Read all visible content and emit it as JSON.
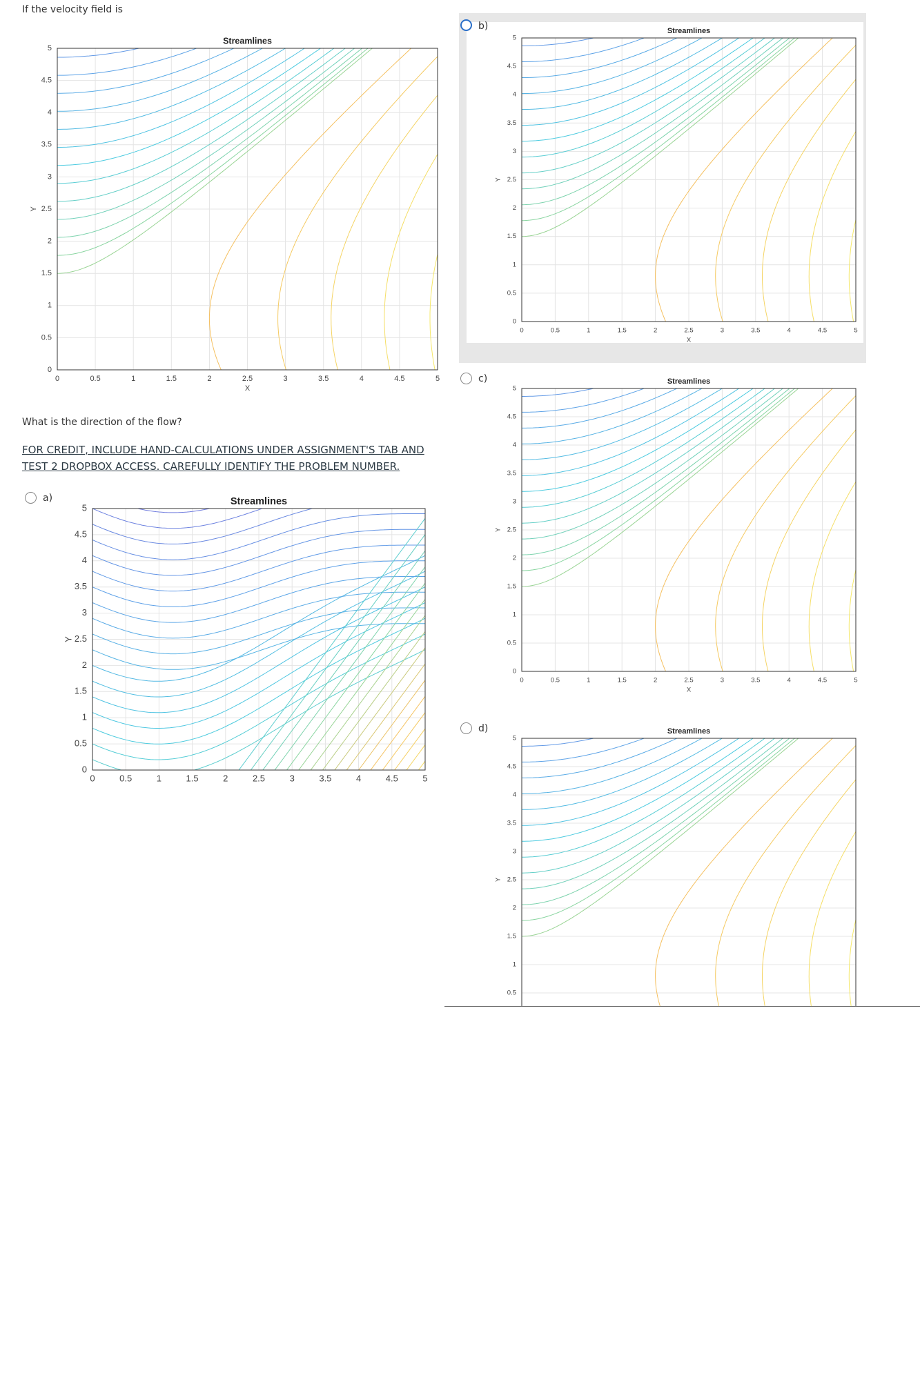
{
  "page": {
    "prompt": "If the velocity field is",
    "question": "What is the direction of the flow?",
    "instruction": [
      "FOR CREDIT, INCLUDE HAND-CALCULATIONS UNDER ASSIGNMENT'S TAB AND",
      "TEST 2 DROPBOX  ACCESS. CAREFULLY IDENTIFY THE PROBLEM NUMBER."
    ]
  },
  "options": [
    {
      "label": "a)"
    },
    {
      "label": "b)"
    },
    {
      "label": "c)"
    },
    {
      "label": "d)"
    }
  ],
  "plots": [
    {
      "title": "Streamlines",
      "xlabel": "X",
      "ylabel": "Y",
      "xlim": [
        0,
        5
      ],
      "ylim": [
        0,
        5
      ],
      "xticks": [
        0,
        0.5,
        1,
        1.5,
        2,
        2.5,
        3,
        3.5,
        4,
        4.5,
        5
      ],
      "yticks": [
        0,
        0.5,
        1,
        1.5,
        2,
        2.5,
        3,
        3.5,
        4,
        4.5,
        5
      ]
    },
    {
      "title": "Streamlines",
      "ylabel": "Y",
      "xlim": [
        0,
        5
      ],
      "ylim": [
        0,
        5
      ],
      "xticks": [
        0,
        0.5,
        1,
        1.5,
        2,
        2.5,
        3,
        3.5,
        4,
        4.5,
        5
      ],
      "yticks": [
        0,
        0.5,
        1,
        1.5,
        2,
        2.5,
        3,
        3.5,
        4,
        4.5,
        5
      ]
    },
    {
      "title": "Streamlines",
      "xlabel": "X",
      "ylabel": "Y",
      "xlim": [
        0,
        5
      ],
      "ylim": [
        0,
        5
      ],
      "xticks": [
        0,
        0.5,
        1,
        1.5,
        2,
        2.5,
        3,
        3.5,
        4,
        4.5,
        5
      ],
      "yticks": [
        0,
        0.5,
        1,
        1.5,
        2,
        2.5,
        3,
        3.5,
        4,
        4.5,
        5
      ]
    },
    {
      "title": "Streamlines",
      "xlabel": "X",
      "ylabel": "Y",
      "xlim": [
        0,
        5
      ],
      "ylim": [
        0,
        5
      ],
      "xticks": [
        0,
        0.5,
        1,
        1.5,
        2,
        2.5,
        3,
        3.5,
        4,
        4.5,
        5
      ],
      "yticks": [
        0,
        0.5,
        1,
        1.5,
        2,
        2.5,
        3,
        3.5,
        4,
        4.5,
        5
      ]
    },
    {
      "title": "Streamlines",
      "ylabel": "Y",
      "xlim": [
        0,
        5
      ],
      "ylim": [
        0,
        5
      ],
      "yticks": [
        0.5,
        1,
        1.5,
        2,
        2.5,
        3,
        3.5,
        4,
        4.5,
        5
      ]
    }
  ]
}
